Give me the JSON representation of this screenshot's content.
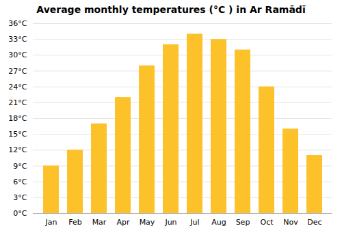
{
  "chart_data": {
    "type": "bar",
    "title": "Average monthly temperatures (°C ) in Ar Ramādī",
    "categories": [
      "Jan",
      "Feb",
      "Mar",
      "Apr",
      "May",
      "Jun",
      "Jul",
      "Aug",
      "Sep",
      "Oct",
      "Nov",
      "Dec"
    ],
    "values": [
      9,
      12,
      17,
      22,
      28,
      32,
      34,
      33,
      31,
      24,
      16,
      11
    ],
    "color": "#FDC12A",
    "ylim": [
      0,
      36
    ],
    "yticks": [
      {
        "value": 0,
        "label": "0°C"
      },
      {
        "value": 3,
        "label": "3°C"
      },
      {
        "value": 6,
        "label": "6°C"
      },
      {
        "value": 9,
        "label": "9°C"
      },
      {
        "value": 12,
        "label": "12°C"
      },
      {
        "value": 15,
        "label": "15°C"
      },
      {
        "value": 18,
        "label": "18°C"
      },
      {
        "value": 21,
        "label": "21°C"
      },
      {
        "value": 24,
        "label": "24°C"
      },
      {
        "value": 27,
        "label": "27°C"
      },
      {
        "value": 30,
        "label": "30°C"
      },
      {
        "value": 33,
        "label": "33°C"
      },
      {
        "value": 36,
        "label": "36°C"
      }
    ],
    "grid": true
  }
}
